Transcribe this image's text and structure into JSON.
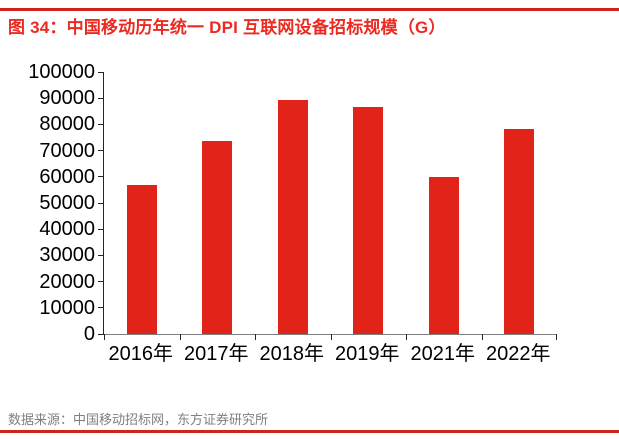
{
  "figure": {
    "title": "图 34：中国移动历年统一 DPI 互联网设备招标规模（G）",
    "source": "数据来源：中国移动招标网，东方证券研究所"
  },
  "colors": {
    "bar": "#e2231a",
    "title_text": "#ec2a21",
    "rule": "#cf231d",
    "axis_line": "#7f7f7f",
    "tick_label": "#000000",
    "source_text": "#7f7f7f"
  },
  "chart_data": {
    "type": "bar",
    "title": "图 34：中国移动历年统一 DPI 互联网设备招标规模（G）",
    "categories": [
      "2016年",
      "2017年",
      "2018年",
      "2019年",
      "2021年",
      "2022年"
    ],
    "values": [
      56800,
      73700,
      89200,
      86500,
      60000,
      78200
    ],
    "xlabel": "",
    "ylabel": "",
    "ylim": [
      0,
      100000
    ],
    "ytick_step": 10000,
    "ytick_labels": [
      "0",
      "10000",
      "20000",
      "30000",
      "40000",
      "50000",
      "60000",
      "70000",
      "80000",
      "90000",
      "100000"
    ],
    "grid": false,
    "legend": "none",
    "bar_color": "#e2231a"
  }
}
